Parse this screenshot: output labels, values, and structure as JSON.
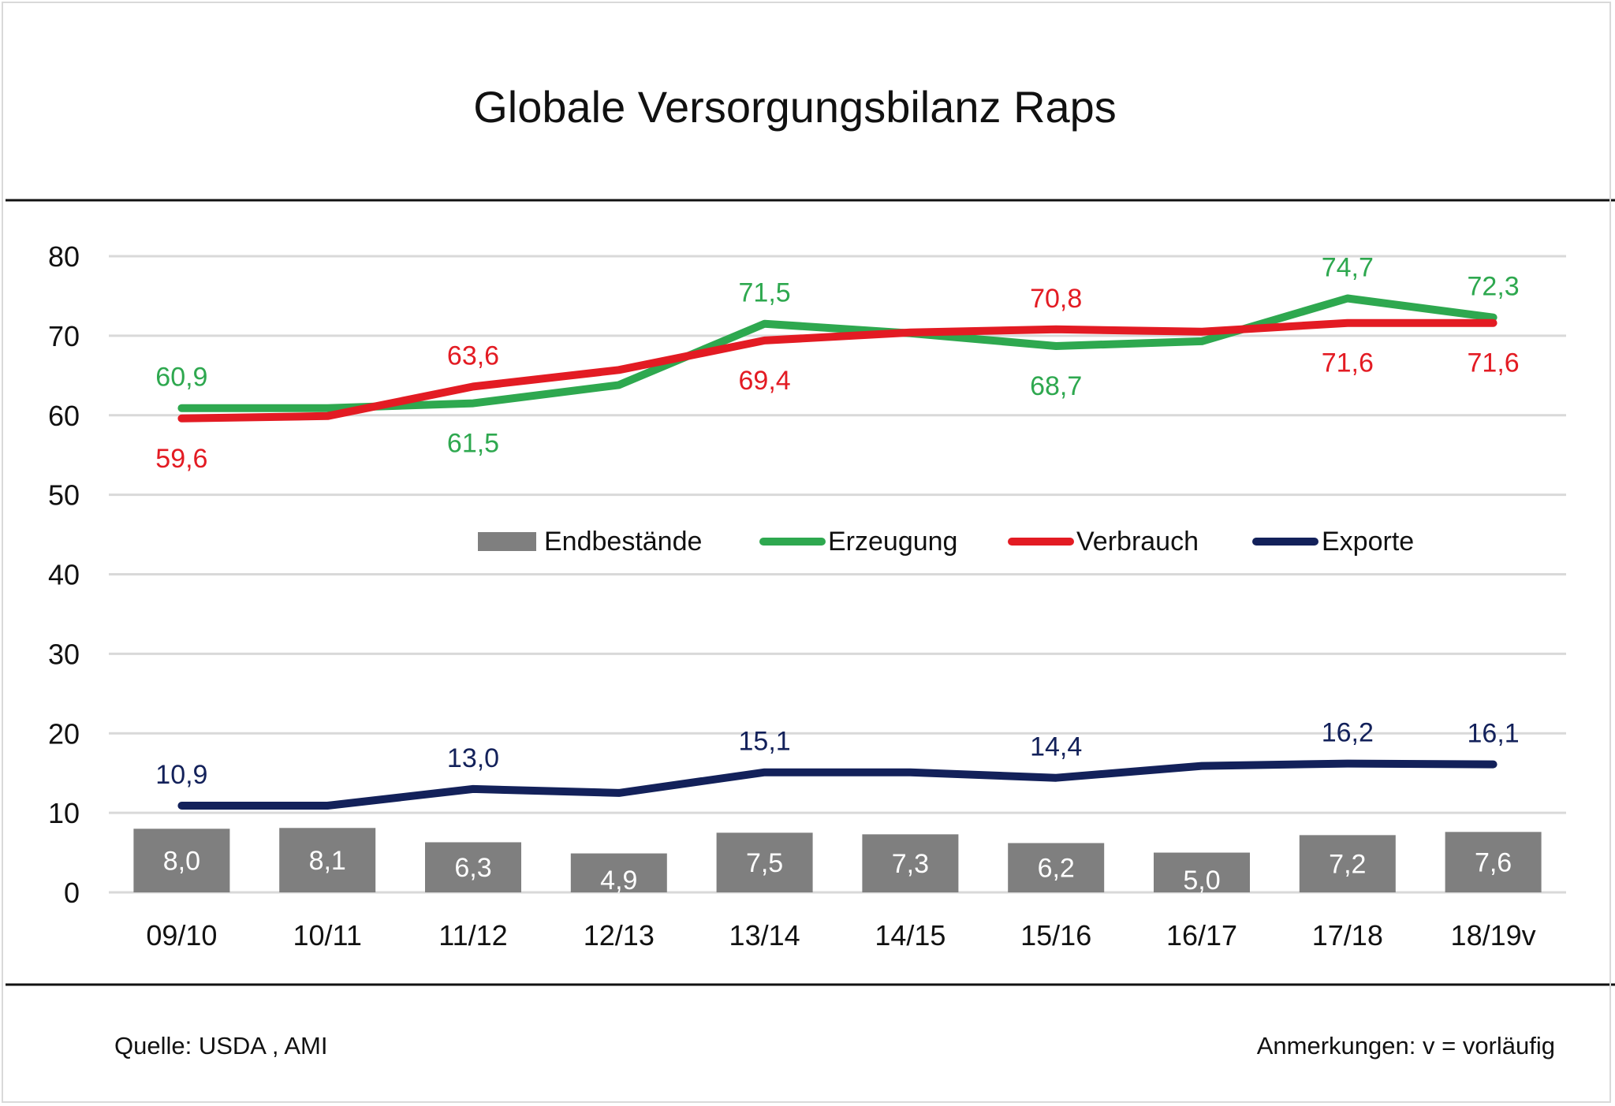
{
  "chart_data": {
    "type": "bar+line",
    "title": "Globale Versorgungsbilanz Raps",
    "xlabel": "",
    "ylabel": "",
    "ylim": [
      0,
      80
    ],
    "yticks": [
      "0",
      "10",
      "20",
      "30",
      "40",
      "50",
      "60",
      "70",
      "80"
    ],
    "ytick_values": [
      0,
      10,
      20,
      30,
      40,
      50,
      60,
      70,
      80
    ],
    "grid": true,
    "legend_position": "center",
    "categories": [
      "09/10",
      "10/11",
      "11/12",
      "12/13",
      "13/14",
      "14/15",
      "15/16",
      "16/17",
      "17/18",
      "18/19v"
    ],
    "series": [
      {
        "name": "Endbestände",
        "kind": "bar",
        "color": "#7f7f7f",
        "values": [
          8.0,
          8.1,
          6.3,
          4.9,
          7.5,
          7.3,
          6.2,
          5.0,
          7.2,
          7.6
        ],
        "labels": [
          "8,0",
          "8,1",
          "6,3",
          "4,9",
          "7,5",
          "7,3",
          "6,2",
          "5,0",
          "7,2",
          "7,6"
        ]
      },
      {
        "name": "Erzeugung",
        "kind": "line",
        "color": "#2ea84f",
        "values": [
          60.9,
          60.9,
          61.5,
          63.8,
          71.5,
          70.3,
          68.7,
          69.3,
          74.7,
          72.3
        ],
        "labels": [
          "60,9",
          null,
          "61,5",
          null,
          "71,5",
          null,
          "68,7",
          null,
          "74,7",
          "72,3"
        ],
        "label_side": [
          "above",
          null,
          "below",
          null,
          "above",
          null,
          "below",
          null,
          "above",
          "above"
        ]
      },
      {
        "name": "Verbrauch",
        "kind": "line",
        "color": "#e31b23",
        "values": [
          59.6,
          59.9,
          63.6,
          65.7,
          69.4,
          70.4,
          70.8,
          70.5,
          71.6,
          71.6
        ],
        "labels": [
          "59,6",
          null,
          "63,6",
          null,
          "69,4",
          null,
          "70,8",
          null,
          "71,6",
          "71,6"
        ],
        "label_side": [
          "below",
          null,
          "above",
          null,
          "below",
          null,
          "above",
          null,
          "below",
          "below"
        ]
      },
      {
        "name": "Exporte",
        "kind": "line",
        "color": "#13215a",
        "values": [
          10.9,
          10.9,
          13.0,
          12.5,
          15.1,
          15.1,
          14.4,
          15.9,
          16.2,
          16.1
        ],
        "labels": [
          "10,9",
          null,
          "13,0",
          null,
          "15,1",
          null,
          "14,4",
          null,
          "16,2",
          "16,1"
        ],
        "label_side": [
          "above",
          null,
          "above",
          null,
          "above",
          null,
          "above",
          null,
          "above",
          "above"
        ]
      }
    ]
  },
  "footer": {
    "source": "Quelle: USDA , AMI",
    "note": "Anmerkungen: v = vorläufig"
  },
  "colors": {
    "gridline": "#d9d9d9",
    "rule": "#111111",
    "text": "#111111"
  }
}
